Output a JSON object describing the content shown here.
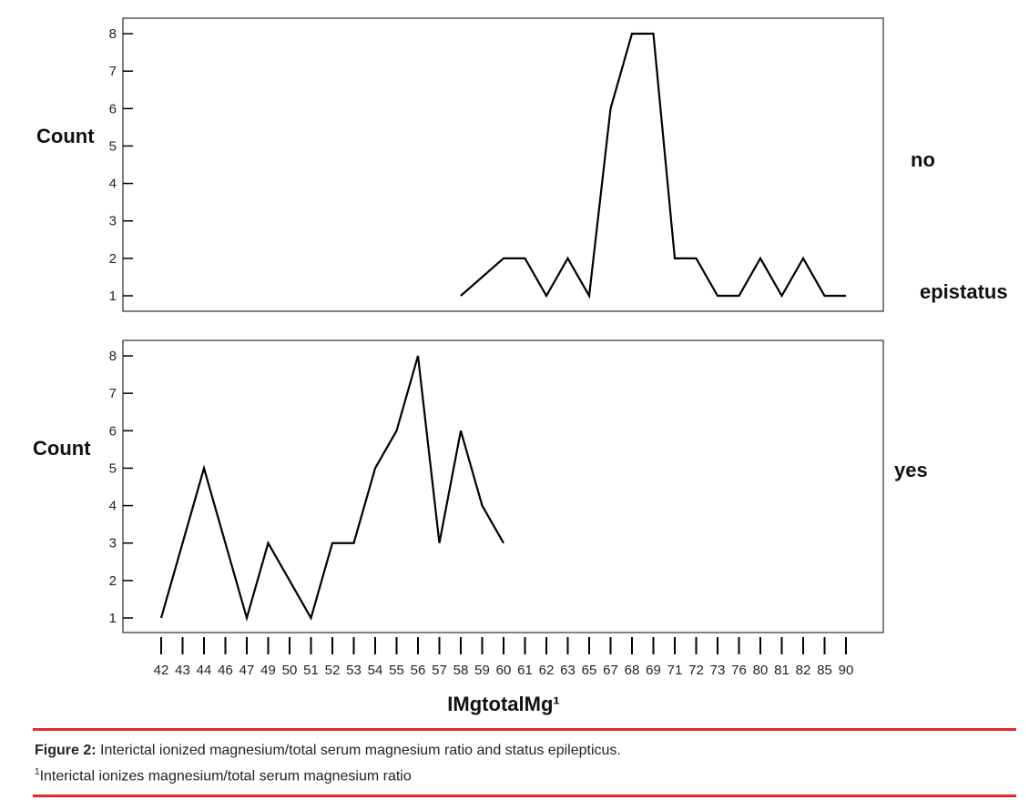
{
  "chart_data": {
    "type": "line",
    "x_categories": [
      "42",
      "43",
      "44",
      "46",
      "47",
      "49",
      "50",
      "51",
      "52",
      "53",
      "54",
      "55",
      "56",
      "57",
      "58",
      "59",
      "60",
      "61",
      "62",
      "63",
      "65",
      "67",
      "68",
      "69",
      "71",
      "72",
      "73",
      "76",
      "80",
      "81",
      "82",
      "85",
      "90"
    ],
    "xlabel": "IMgtotalMg¹",
    "group_title": "epistatus",
    "panels": [
      {
        "name": "no",
        "ylabel": "Count",
        "yticks": [
          1,
          2,
          3,
          4,
          5,
          6,
          7,
          8
        ],
        "ylim": [
          1,
          8
        ],
        "points": [
          {
            "x": "58",
            "y": 1
          },
          {
            "x": "60",
            "y": 2
          },
          {
            "x": "61",
            "y": 2
          },
          {
            "x": "62",
            "y": 1
          },
          {
            "x": "63",
            "y": 2
          },
          {
            "x": "65",
            "y": 1
          },
          {
            "x": "67",
            "y": 6
          },
          {
            "x": "68",
            "y": 8
          },
          {
            "x": "69",
            "y": 8
          },
          {
            "x": "71",
            "y": 2
          },
          {
            "x": "72",
            "y": 2
          },
          {
            "x": "73",
            "y": 1
          },
          {
            "x": "76",
            "y": 1
          },
          {
            "x": "80",
            "y": 2
          },
          {
            "x": "81",
            "y": 1
          },
          {
            "x": "82",
            "y": 2
          },
          {
            "x": "85",
            "y": 1
          },
          {
            "x": "90",
            "y": 1
          }
        ]
      },
      {
        "name": "yes",
        "ylabel": "Count",
        "yticks": [
          1,
          2,
          3,
          4,
          5,
          6,
          7,
          8
        ],
        "ylim": [
          1,
          8
        ],
        "points": [
          {
            "x": "42",
            "y": 1
          },
          {
            "x": "44",
            "y": 5
          },
          {
            "x": "47",
            "y": 1
          },
          {
            "x": "49",
            "y": 3
          },
          {
            "x": "51",
            "y": 1
          },
          {
            "x": "52",
            "y": 3
          },
          {
            "x": "53",
            "y": 3
          },
          {
            "x": "54",
            "y": 5
          },
          {
            "x": "55",
            "y": 6
          },
          {
            "x": "56",
            "y": 8
          },
          {
            "x": "57",
            "y": 3
          },
          {
            "x": "58",
            "y": 6
          },
          {
            "x": "59",
            "y": 4
          },
          {
            "x": "60",
            "y": 3
          }
        ]
      }
    ]
  },
  "caption": {
    "label": "Figure 2:",
    "text": " Interictal ionized magnesium/total serum magnesium ratio and status epilepticus.",
    "note_mark": "1",
    "note_text": "Interictal ionizes magnesium/total serum magnesium ratio"
  },
  "colors": {
    "line": "#000000",
    "rule": "#e8262c"
  }
}
